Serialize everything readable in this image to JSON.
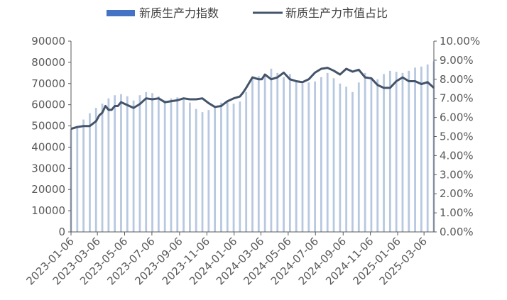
{
  "colors": {
    "bar": "#b8c8e0",
    "legend_bar": "#4472c4",
    "line": "#44546a",
    "axis": "#595959",
    "text": "#595959"
  },
  "chart_data": {
    "type": "bar",
    "title": "",
    "xlabel": "",
    "ylabel": "",
    "legend_position": "top-center",
    "grid": false,
    "series": [
      {
        "name": "新质生产力指数",
        "axis": "left",
        "render": "bar"
      },
      {
        "name": "新质生产力市值占比",
        "axis": "right",
        "render": "line"
      }
    ],
    "left_axis": {
      "ylim": [
        0,
        90000
      ],
      "ticks": [
        0,
        10000,
        20000,
        30000,
        40000,
        50000,
        60000,
        70000,
        80000,
        90000
      ],
      "tick_labels": [
        "0",
        "10000",
        "20000",
        "30000",
        "40000",
        "50000",
        "60000",
        "70000",
        "80000",
        "90000"
      ]
    },
    "right_axis": {
      "ylim": [
        0,
        10
      ],
      "ticks": [
        0,
        1,
        2,
        3,
        4,
        5,
        6,
        7,
        8,
        9,
        10
      ],
      "tick_labels": [
        "0.00%",
        "1.00%",
        "2.00%",
        "3.00%",
        "4.00%",
        "5.00%",
        "6.00%",
        "7.00%",
        "8.00%",
        "9.00%",
        "10.00%"
      ]
    },
    "x_tick_labels": [
      "2023-01-06",
      "2023-03-06",
      "2023-05-06",
      "2023-07-06",
      "2023-09-06",
      "2023-11-06",
      "2024-01-06",
      "2024-03-06",
      "2024-05-06",
      "2024-07-06",
      "2024-09-06",
      "2024-11-06",
      "2025-01-06",
      "2025-03-06"
    ],
    "x_range": [
      "2023-01-06",
      "2025-03-28"
    ],
    "bars": {
      "x": [
        "2023-01-06",
        "2023-01-20",
        "2023-02-03",
        "2023-02-17",
        "2023-03-03",
        "2023-03-17",
        "2023-03-31",
        "2023-04-14",
        "2023-04-28",
        "2023-05-12",
        "2023-05-26",
        "2023-06-09",
        "2023-06-23",
        "2023-07-07",
        "2023-07-21",
        "2023-08-04",
        "2023-08-18",
        "2023-09-01",
        "2023-09-15",
        "2023-09-29",
        "2023-10-13",
        "2023-10-27",
        "2023-11-10",
        "2023-11-24",
        "2023-12-08",
        "2023-12-22",
        "2024-01-05",
        "2024-01-19",
        "2024-02-02",
        "2024-02-16",
        "2024-03-01",
        "2024-03-15",
        "2024-03-29",
        "2024-04-12",
        "2024-04-26",
        "2024-05-10",
        "2024-05-24",
        "2024-06-07",
        "2024-06-21",
        "2024-07-05",
        "2024-07-19",
        "2024-08-02",
        "2024-08-16",
        "2024-08-30",
        "2024-09-13",
        "2024-09-27",
        "2024-10-11",
        "2024-10-25",
        "2024-11-08",
        "2024-11-22",
        "2024-12-06",
        "2024-12-20",
        "2025-01-03",
        "2025-01-17",
        "2025-01-31",
        "2025-02-14",
        "2025-02-28",
        "2025-03-14",
        "2025-03-28"
      ],
      "values": [
        48500,
        50000,
        53000,
        56000,
        58500,
        60500,
        63000,
        64500,
        65000,
        64000,
        62000,
        64500,
        66000,
        65500,
        64000,
        62000,
        63000,
        63500,
        62500,
        61000,
        58000,
        56500,
        57500,
        59500,
        61000,
        62000,
        60500,
        61500,
        66000,
        72000,
        73500,
        74000,
        77000,
        75000,
        73000,
        74500,
        71500,
        70000,
        70500,
        71000,
        73000,
        75000,
        72500,
        70000,
        68500,
        66000,
        70500,
        75000,
        73000,
        72000,
        74500,
        76000,
        75500,
        75000,
        76000,
        77500,
        78000,
        79000,
        80500
      ]
    },
    "line": {
      "x": [
        "2023-01-06",
        "2023-01-20",
        "2023-02-03",
        "2023-02-17",
        "2023-03-03",
        "2023-03-10",
        "2023-03-17",
        "2023-03-24",
        "2023-03-31",
        "2023-04-07",
        "2023-04-14",
        "2023-04-21",
        "2023-04-28",
        "2023-05-12",
        "2023-05-26",
        "2023-06-09",
        "2023-06-23",
        "2023-07-07",
        "2023-07-21",
        "2023-08-04",
        "2023-08-18",
        "2023-09-01",
        "2023-09-15",
        "2023-09-29",
        "2023-10-13",
        "2023-10-27",
        "2023-11-10",
        "2023-11-24",
        "2023-12-08",
        "2023-12-22",
        "2024-01-05",
        "2024-01-19",
        "2024-01-26",
        "2024-02-02",
        "2024-02-16",
        "2024-03-01",
        "2024-03-08",
        "2024-03-15",
        "2024-03-29",
        "2024-04-12",
        "2024-04-26",
        "2024-05-10",
        "2024-05-24",
        "2024-06-07",
        "2024-06-21",
        "2024-07-05",
        "2024-07-19",
        "2024-08-02",
        "2024-08-16",
        "2024-08-30",
        "2024-09-13",
        "2024-09-27",
        "2024-10-11",
        "2024-10-25",
        "2024-11-08",
        "2024-11-22",
        "2024-12-06",
        "2024-12-20",
        "2025-01-03",
        "2025-01-17",
        "2025-01-31",
        "2025-02-14",
        "2025-02-28",
        "2025-03-14",
        "2025-03-28"
      ],
      "values": [
        5.4,
        5.5,
        5.55,
        5.55,
        5.8,
        6.1,
        6.25,
        6.6,
        6.4,
        6.4,
        6.6,
        6.6,
        6.8,
        6.65,
        6.5,
        6.7,
        7.0,
        6.95,
        7.0,
        6.8,
        6.85,
        6.9,
        7.0,
        6.95,
        6.95,
        7.0,
        6.75,
        6.55,
        6.6,
        6.85,
        7.0,
        7.1,
        7.3,
        7.55,
        8.1,
        8.0,
        8.0,
        8.25,
        8.0,
        8.1,
        8.35,
        8.0,
        7.9,
        7.85,
        8.0,
        8.35,
        8.55,
        8.6,
        8.45,
        8.25,
        8.55,
        8.4,
        8.5,
        8.1,
        8.05,
        7.7,
        7.55,
        7.55,
        7.9,
        8.1,
        7.9,
        7.9,
        7.75,
        7.85,
        7.55
      ]
    }
  }
}
